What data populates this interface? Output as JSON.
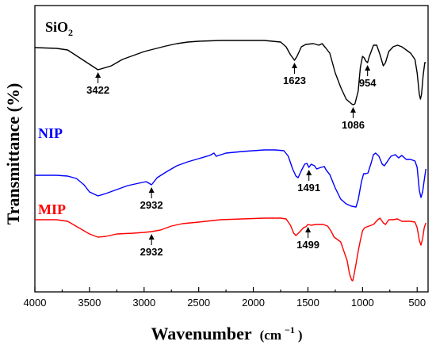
{
  "chart_data": {
    "type": "line",
    "title": "",
    "xlabel_main": "Wavenumber",
    "xlabel_unit_open": "(cm",
    "xlabel_unit_sup": "−1",
    "xlabel_unit_close": ")",
    "ylabel": "Transmittance (%)",
    "xlim": [
      4000,
      400
    ],
    "x_reversed": true,
    "y_ticks_shown": false,
    "grid": false,
    "x_ticks": [
      "4000",
      "3500",
      "3000",
      "2500",
      "2000",
      "1500",
      "1000",
      "500"
    ],
    "series": [
      {
        "name_main": "SiO",
        "name_sub": "2",
        "color": "#000000",
        "offset": 0,
        "points": [
          [
            4000,
            53
          ],
          [
            3800,
            54
          ],
          [
            3700,
            56
          ],
          [
            3600,
            65
          ],
          [
            3500,
            74
          ],
          [
            3422,
            81
          ],
          [
            3300,
            76
          ],
          [
            3200,
            68
          ],
          [
            3000,
            58
          ],
          [
            2800,
            51
          ],
          [
            2700,
            48
          ],
          [
            2600,
            46
          ],
          [
            2500,
            45
          ],
          [
            2300,
            44
          ],
          [
            2100,
            44
          ],
          [
            1900,
            44
          ],
          [
            1750,
            46
          ],
          [
            1700,
            52
          ],
          [
            1660,
            62
          ],
          [
            1623,
            69
          ],
          [
            1600,
            64
          ],
          [
            1560,
            52
          ],
          [
            1520,
            49
          ],
          [
            1450,
            48
          ],
          [
            1400,
            50
          ],
          [
            1370,
            48
          ],
          [
            1340,
            53
          ],
          [
            1300,
            60
          ],
          [
            1250,
            85
          ],
          [
            1200,
            103
          ],
          [
            1150,
            118
          ],
          [
            1100,
            124
          ],
          [
            1086,
            125
          ],
          [
            1070,
            124
          ],
          [
            1040,
            108
          ],
          [
            1020,
            78
          ],
          [
            1000,
            64
          ],
          [
            985,
            66
          ],
          [
            970,
            70
          ],
          [
            954,
            72
          ],
          [
            940,
            65
          ],
          [
            900,
            50
          ],
          [
            870,
            50
          ],
          [
            840,
            62
          ],
          [
            810,
            76
          ],
          [
            790,
            72
          ],
          [
            760,
            58
          ],
          [
            720,
            52
          ],
          [
            680,
            50
          ],
          [
            640,
            52
          ],
          [
            600,
            56
          ],
          [
            560,
            60
          ],
          [
            520,
            68
          ],
          [
            500,
            85
          ],
          [
            480,
            112
          ],
          [
            470,
            118
          ],
          [
            460,
            112
          ],
          [
            445,
            88
          ],
          [
            430,
            72
          ],
          [
            420,
            72
          ]
        ],
        "peaks": [
          {
            "x": 3422,
            "label": "3422"
          },
          {
            "x": 1623,
            "label": "1623"
          },
          {
            "x": 1086,
            "label": "1086"
          },
          {
            "x": 954,
            "label": "954"
          }
        ]
      },
      {
        "name_main": "NIP",
        "name_sub": "",
        "color": "#0000ff",
        "offset": 118,
        "points": [
          [
            4000,
            96
          ],
          [
            3800,
            96
          ],
          [
            3700,
            97
          ],
          [
            3620,
            100
          ],
          [
            3550,
            108
          ],
          [
            3500,
            117
          ],
          [
            3422,
            122
          ],
          [
            3350,
            119
          ],
          [
            3250,
            114
          ],
          [
            3150,
            109
          ],
          [
            3050,
            106
          ],
          [
            2980,
            104
          ],
          [
            2932,
            108
          ],
          [
            2880,
            99
          ],
          [
            2800,
            92
          ],
          [
            2700,
            84
          ],
          [
            2600,
            79
          ],
          [
            2500,
            75
          ],
          [
            2400,
            71
          ],
          [
            2360,
            68
          ],
          [
            2340,
            72
          ],
          [
            2250,
            68
          ],
          [
            2100,
            66
          ],
          [
            2000,
            65
          ],
          [
            1900,
            64
          ],
          [
            1800,
            64
          ],
          [
            1720,
            65
          ],
          [
            1680,
            72
          ],
          [
            1640,
            88
          ],
          [
            1610,
            97
          ],
          [
            1590,
            99
          ],
          [
            1560,
            90
          ],
          [
            1530,
            82
          ],
          [
            1510,
            81
          ],
          [
            1491,
            86
          ],
          [
            1470,
            82
          ],
          [
            1440,
            84
          ],
          [
            1420,
            88
          ],
          [
            1400,
            87
          ],
          [
            1380,
            86
          ],
          [
            1350,
            85
          ],
          [
            1330,
            90
          ],
          [
            1300,
            95
          ],
          [
            1250,
            112
          ],
          [
            1200,
            126
          ],
          [
            1150,
            132
          ],
          [
            1100,
            135
          ],
          [
            1060,
            136
          ],
          [
            1040,
            127
          ],
          [
            1010,
            104
          ],
          [
            990,
            94
          ],
          [
            970,
            94
          ],
          [
            950,
            93
          ],
          [
            920,
            80
          ],
          [
            900,
            70
          ],
          [
            880,
            68
          ],
          [
            850,
            72
          ],
          [
            820,
            82
          ],
          [
            800,
            84
          ],
          [
            770,
            78
          ],
          [
            740,
            72
          ],
          [
            700,
            70
          ],
          [
            670,
            74
          ],
          [
            640,
            71
          ],
          [
            600,
            76
          ],
          [
            560,
            76
          ],
          [
            520,
            78
          ],
          [
            500,
            86
          ],
          [
            480,
            115
          ],
          [
            465,
            124
          ],
          [
            450,
            117
          ],
          [
            435,
            102
          ],
          [
            420,
            88
          ]
        ],
        "peaks": [
          {
            "x": 2932,
            "label": "2932"
          },
          {
            "x": 1491,
            "label": "1491"
          }
        ]
      },
      {
        "name_main": "MIP",
        "name_sub": "",
        "color": "#ff0000",
        "offset": 218,
        "points": [
          [
            4000,
            52
          ],
          [
            3800,
            52
          ],
          [
            3700,
            54
          ],
          [
            3600,
            62
          ],
          [
            3500,
            70
          ],
          [
            3422,
            74
          ],
          [
            3350,
            73
          ],
          [
            3250,
            70
          ],
          [
            3100,
            69
          ],
          [
            3000,
            68
          ],
          [
            2932,
            67
          ],
          [
            2850,
            65
          ],
          [
            2750,
            60
          ],
          [
            2650,
            57
          ],
          [
            2500,
            55
          ],
          [
            2300,
            52
          ],
          [
            2100,
            51
          ],
          [
            1900,
            50
          ],
          [
            1750,
            50
          ],
          [
            1700,
            51
          ],
          [
            1660,
            59
          ],
          [
            1630,
            69
          ],
          [
            1610,
            72
          ],
          [
            1580,
            68
          ],
          [
            1540,
            62
          ],
          [
            1520,
            61
          ],
          [
            1499,
            58
          ],
          [
            1470,
            59
          ],
          [
            1430,
            58
          ],
          [
            1400,
            58
          ],
          [
            1360,
            58
          ],
          [
            1320,
            60
          ],
          [
            1290,
            66
          ],
          [
            1260,
            74
          ],
          [
            1200,
            80
          ],
          [
            1170,
            92
          ],
          [
            1140,
            104
          ],
          [
            1120,
            120
          ],
          [
            1100,
            128
          ],
          [
            1090,
            129
          ],
          [
            1080,
            123
          ],
          [
            1060,
            108
          ],
          [
            1040,
            92
          ],
          [
            1020,
            78
          ],
          [
            1000,
            66
          ],
          [
            980,
            62
          ],
          [
            940,
            60
          ],
          [
            900,
            58
          ],
          [
            860,
            52
          ],
          [
            840,
            50
          ],
          [
            810,
            56
          ],
          [
            790,
            58
          ],
          [
            760,
            52
          ],
          [
            720,
            52
          ],
          [
            680,
            51
          ],
          [
            640,
            54
          ],
          [
            600,
            54
          ],
          [
            560,
            54
          ],
          [
            520,
            55
          ],
          [
            500,
            62
          ],
          [
            480,
            78
          ],
          [
            465,
            84
          ],
          [
            450,
            76
          ],
          [
            435,
            62
          ],
          [
            420,
            56
          ]
        ],
        "peaks": [
          {
            "x": 2932,
            "label": "2932"
          },
          {
            "x": 1499,
            "label": "1499"
          }
        ]
      }
    ]
  }
}
